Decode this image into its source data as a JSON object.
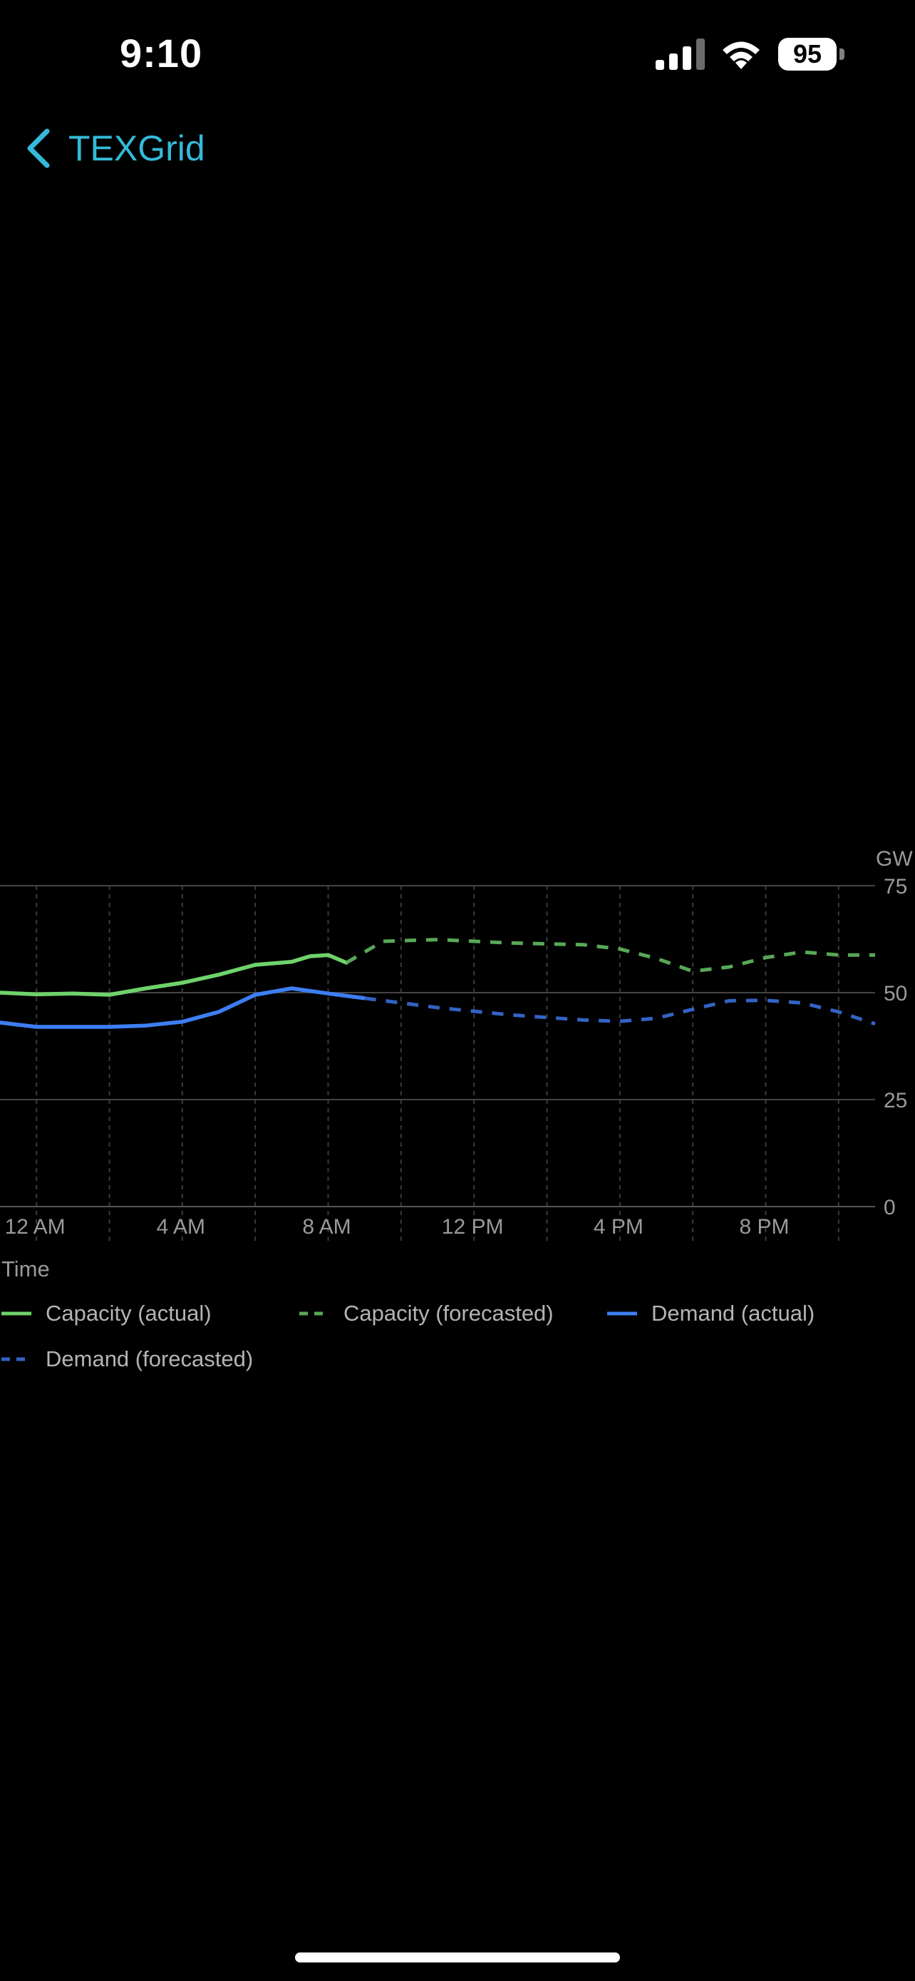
{
  "status_bar": {
    "time": "9:10",
    "battery": "95",
    "icons": [
      "signal-icon",
      "wifi-icon",
      "battery-icon"
    ]
  },
  "nav": {
    "back_label": "TEXGrid",
    "back_icon": "chevron-left-icon",
    "accent_color": "#35b9d8"
  },
  "chart_data": {
    "type": "line",
    "ylabel": "GW",
    "xlabel": "Time",
    "ylim": [
      0,
      75
    ],
    "y_ticks": [
      0,
      25,
      50,
      75
    ],
    "x_range_hours": [
      -1,
      23
    ],
    "x_ticks": [
      {
        "hour": 0,
        "label": "12 AM"
      },
      {
        "hour": 4,
        "label": "4 AM"
      },
      {
        "hour": 8,
        "label": "8 AM"
      },
      {
        "hour": 12,
        "label": "12 PM"
      },
      {
        "hour": 16,
        "label": "4 PM"
      },
      {
        "hour": 20,
        "label": "8 PM"
      }
    ],
    "vertical_grid_hours": [
      0,
      2,
      4,
      6,
      8,
      10,
      12,
      14,
      16,
      18,
      20,
      22
    ],
    "grid": true,
    "legend_position": "bottom",
    "series": [
      {
        "name": "Capacity (actual)",
        "color": "#6fd26a",
        "dashed": false,
        "points": [
          [
            -1,
            50
          ],
          [
            0,
            49.6
          ],
          [
            1,
            49.8
          ],
          [
            2,
            49.5
          ],
          [
            3,
            51
          ],
          [
            4,
            52.3
          ],
          [
            5,
            54.2
          ],
          [
            6,
            56.5
          ],
          [
            7,
            57.2
          ],
          [
            7.5,
            58.5
          ],
          [
            8,
            58.8
          ],
          [
            8.5,
            57
          ]
        ]
      },
      {
        "name": "Capacity (forecasted)",
        "color": "#58a857",
        "dashed": true,
        "points": [
          [
            8.5,
            57
          ],
          [
            9,
            59.5
          ],
          [
            9.5,
            62
          ],
          [
            11,
            62.4
          ],
          [
            13,
            61.6
          ],
          [
            15,
            61.2
          ],
          [
            16,
            60.2
          ],
          [
            17,
            58
          ],
          [
            18,
            55
          ],
          [
            19,
            56
          ],
          [
            20,
            58.2
          ],
          [
            21,
            59.5
          ],
          [
            22,
            58.8
          ],
          [
            23,
            58.8
          ]
        ]
      },
      {
        "name": "Demand (actual)",
        "color": "#3d7ef3",
        "dashed": false,
        "points": [
          [
            -1,
            43
          ],
          [
            0,
            42
          ],
          [
            1,
            42
          ],
          [
            2,
            42
          ],
          [
            3,
            42.3
          ],
          [
            4,
            43.2
          ],
          [
            5,
            45.5
          ],
          [
            6,
            49.5
          ],
          [
            7,
            51
          ],
          [
            8,
            49.8
          ],
          [
            9,
            48.7
          ]
        ]
      },
      {
        "name": "Demand (forecasted)",
        "color": "#3263c4",
        "dashed": true,
        "points": [
          [
            9,
            48.7
          ],
          [
            11,
            46.5
          ],
          [
            13,
            44.8
          ],
          [
            15,
            43.6
          ],
          [
            16,
            43.3
          ],
          [
            17,
            44
          ],
          [
            18,
            46.1
          ],
          [
            19,
            48.1
          ],
          [
            20,
            48.2
          ],
          [
            21,
            47.6
          ],
          [
            22,
            45.5
          ],
          [
            23,
            42.7
          ]
        ]
      }
    ]
  }
}
